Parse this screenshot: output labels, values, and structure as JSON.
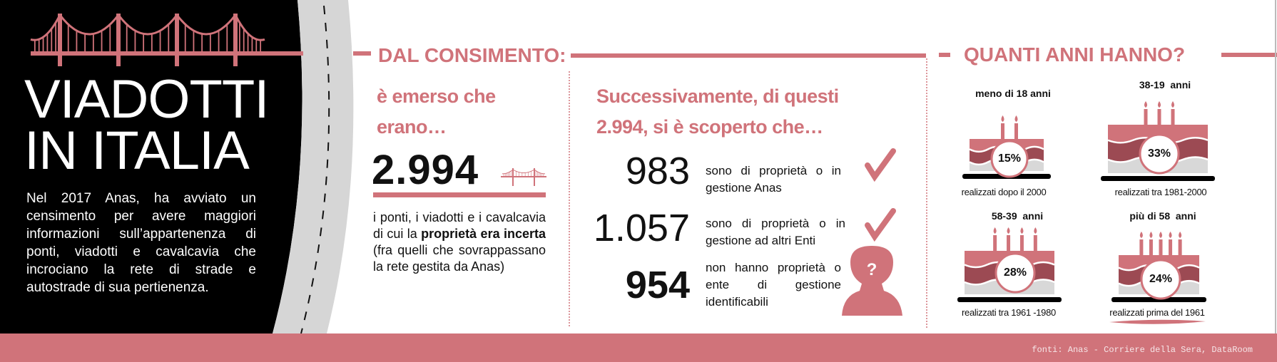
{
  "colors": {
    "accent": "#d0737a",
    "dark_accent": "#9c4a53",
    "panel": "#000000",
    "road": "#d6d6d6",
    "cake_base": "#d8d8d8"
  },
  "title": {
    "line1": "VIADOTTI",
    "line2": "IN ITALIA"
  },
  "intro": "Nel 2017 Anas, ha avviato un censimento per avere maggiori informazioni sull’appartenenza di ponti, viadotti e cavalcavia che incrociano la rete di strade e autostrade di sua pertienenza.",
  "census": {
    "heading": "DAL CONSIMENTO:",
    "lead": [
      "è emerso che",
      "erano…"
    ],
    "total": "2.994",
    "para_before": "i ponti, i viadotti e i cavalcavia di cui la ",
    "para_bold": "proprietà era incerta",
    "para_after": " (fra quelli che sovrappassano la rete gestita da Anas)"
  },
  "findings": {
    "lead": [
      "Successivamente, di questi",
      "2.994, si è scoperto che…"
    ],
    "items": [
      {
        "value": "983",
        "text": "sono di proprietà o in gestione Anas",
        "icon": "check-icon"
      },
      {
        "value": "1.057",
        "text": "sono di proprietà o in gestione ad altri Enti",
        "icon": "check-icon"
      },
      {
        "value": "954",
        "text": "non hanno proprietà o ente di gestione identificabili",
        "icon": "unknown-person-icon"
      }
    ]
  },
  "ages": {
    "heading": "QUANTI ANNI HANNO?",
    "items": [
      {
        "label": "meno di 18 anni",
        "percent": "15%",
        "caption": "realizzati dopo il 2000",
        "candles": 2
      },
      {
        "label": "38-19  anni",
        "percent": "33%",
        "caption": "realizzati tra 1981-2000",
        "candles": 3
      },
      {
        "label": "58-39  anni",
        "percent": "28%",
        "caption": "realizzati tra 1961 -1980",
        "candles": 4
      },
      {
        "label": "più di 58  anni",
        "percent": "24%",
        "caption": "realizzati prima del 1961",
        "candles": 5
      }
    ]
  },
  "footer": {
    "sources": "fonti: Anas - Corriere della Sera, DataRoom"
  }
}
